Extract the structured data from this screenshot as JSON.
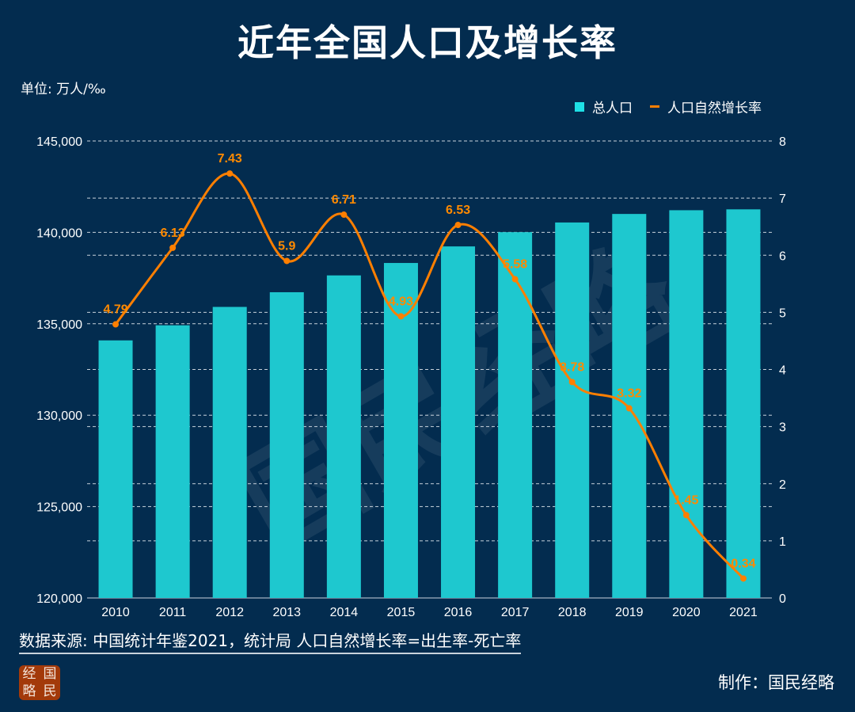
{
  "title": "近年全国人口及增长率",
  "unit": "单位: 万人/‰",
  "source": "数据来源: 中国统计年鉴2021，统计局  人口自然增长率=出生率-死亡率",
  "credit": "制作：国民经略",
  "logo_text": [
    "经",
    "国",
    "略",
    "民"
  ],
  "watermark": "国民经略",
  "colors": {
    "background": "#032c4f",
    "bar": "#1ec8cf",
    "line": "#ff7f00"
  },
  "chart_data": {
    "type": "bar+line",
    "categories": [
      "2010",
      "2011",
      "2012",
      "2013",
      "2014",
      "2015",
      "2016",
      "2017",
      "2018",
      "2019",
      "2020",
      "2021"
    ],
    "series": [
      {
        "name": "总人口",
        "type": "bar",
        "axis": "left",
        "values": [
          134091,
          134916,
          135922,
          136726,
          137646,
          138326,
          139232,
          140011,
          140541,
          141008,
          141212,
          141260
        ]
      },
      {
        "name": "人口自然增长率",
        "type": "line",
        "axis": "right",
        "values": [
          4.79,
          6.13,
          7.43,
          5.9,
          6.71,
          4.93,
          6.53,
          5.58,
          3.78,
          3.32,
          1.45,
          0.34
        ],
        "labels": [
          "4.79",
          "6.13",
          "7.43",
          "5.9",
          "6.71",
          "4.93",
          "6.53",
          "5.58",
          "3.78",
          "3.32",
          "1.45",
          "0.34"
        ]
      }
    ],
    "left_axis": {
      "range": [
        120000,
        145000
      ],
      "ticks": [
        "120,000",
        "125,000",
        "130,000",
        "135,000",
        "140,000",
        "145,000"
      ]
    },
    "right_axis": {
      "range": [
        0,
        8
      ],
      "ticks": [
        "0",
        "1",
        "2",
        "3",
        "4",
        "5",
        "6",
        "7",
        "8"
      ]
    },
    "grid": "dashed horizontal",
    "legend": "top-right"
  }
}
